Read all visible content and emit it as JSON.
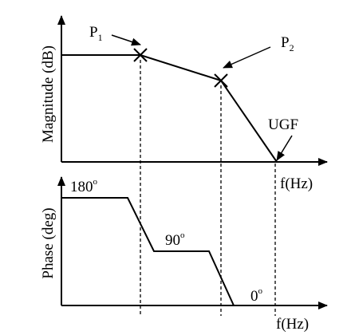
{
  "magnitude_plot": {
    "y_axis_label": "Magnitude (dB)",
    "x_axis_label": "f(Hz)",
    "pole1": {
      "name": "P",
      "subscript": "1"
    },
    "pole2": {
      "name": "P",
      "subscript": "2"
    },
    "ugf_label": "UGF"
  },
  "phase_plot": {
    "y_axis_label": "Phase (deg)",
    "x_axis_label": "f(Hz)",
    "level_180": {
      "value": "180",
      "unit": "o"
    },
    "level_90": {
      "value": "90",
      "unit": "o"
    },
    "level_0": {
      "value": "0",
      "unit": "o"
    }
  }
}
